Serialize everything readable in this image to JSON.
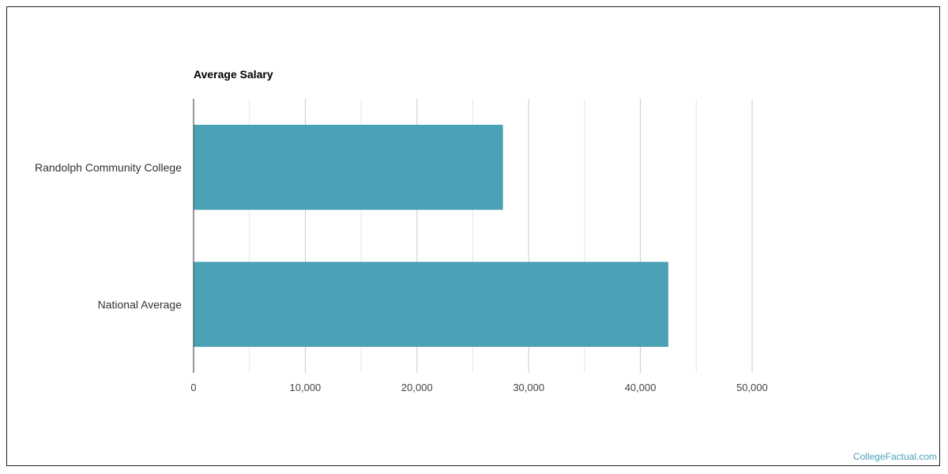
{
  "chart_data": {
    "type": "bar",
    "orientation": "horizontal",
    "title": "Average Salary",
    "categories": [
      "Randolph Community College",
      "National Average"
    ],
    "values": [
      27700,
      42500
    ],
    "xlim": [
      0,
      50000
    ],
    "xticks": [
      0,
      10000,
      20000,
      30000,
      40000,
      50000
    ],
    "tick_labels": [
      "0",
      "10,000",
      "20,000",
      "30,000",
      "40,000",
      "50,000"
    ],
    "bar_color": "#4aa0b5",
    "grid": true,
    "legend": "none"
  },
  "watermark": "CollegeFactual.com"
}
